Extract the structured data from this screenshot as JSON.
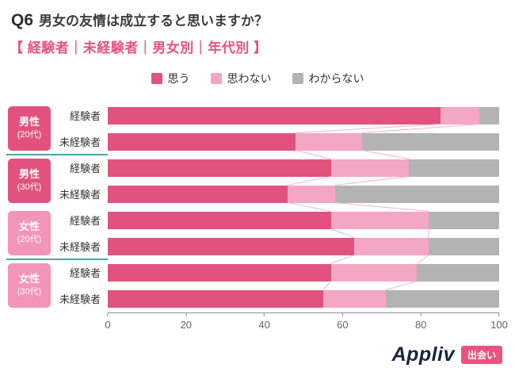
{
  "header": {
    "q_label": "Q6",
    "title": "男女の友情は成立すると思いますか？",
    "subtitle": "【 経験者｜未経験者｜男女別｜年代別 】"
  },
  "chart_data": {
    "type": "bar",
    "orientation": "horizontal",
    "stacked": true,
    "title": "Q6 男女の友情は成立すると思いますか？",
    "xlabel": "",
    "ylabel": "",
    "x_axis": {
      "min": 0,
      "max": 100,
      "ticks": [
        0,
        20,
        40,
        60,
        80,
        100
      ]
    },
    "legend_position": "top-center",
    "connector_color": "#f2b3ca",
    "series": [
      {
        "name": "思う",
        "color": "#e2527e"
      },
      {
        "name": "思わない",
        "color": "#f4a7c3"
      },
      {
        "name": "わからない",
        "color": "#b3b3b3"
      }
    ],
    "groups": [
      {
        "label_line1": "男性",
        "label_line2": "(20代)",
        "color": "#e2527e",
        "rows": [
          {
            "label": "経験者",
            "values": [
              85,
              10,
              5
            ]
          },
          {
            "label": "未経験者",
            "values": [
              48,
              17,
              35
            ]
          }
        ]
      },
      {
        "label_line1": "男性",
        "label_line2": "(30代)",
        "color": "#e2527e",
        "rows": [
          {
            "label": "経験者",
            "values": [
              57,
              20,
              23
            ]
          },
          {
            "label": "未経験者",
            "values": [
              46,
              12,
              42
            ]
          }
        ]
      },
      {
        "label_line1": "女性",
        "label_line2": "(20代)",
        "color": "#f295b7",
        "rows": [
          {
            "label": "経験者",
            "values": [
              57,
              25,
              18
            ]
          },
          {
            "label": "未経験者",
            "values": [
              63,
              19,
              18
            ]
          }
        ]
      },
      {
        "label_line1": "女性",
        "label_line2": "(30代)",
        "color": "#f295b7",
        "rows": [
          {
            "label": "経験者",
            "values": [
              57,
              22,
              21
            ]
          },
          {
            "label": "未経験者",
            "values": [
              55,
              16,
              29
            ]
          }
        ]
      }
    ]
  },
  "footer": {
    "logo": "Appliv",
    "badge": "出会い"
  }
}
